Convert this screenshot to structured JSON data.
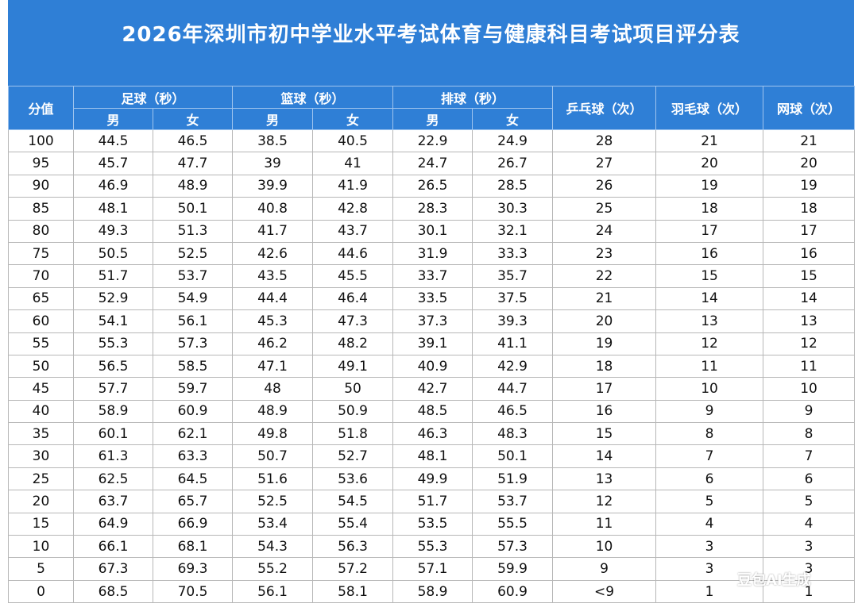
{
  "title": "2026年深圳市初中学业水平考试体育与健康科目考试项目评分表",
  "header": {
    "score": "分值",
    "football": "足球（秒）",
    "basketball": "篮球（秒）",
    "volleyball": "排球（秒）",
    "tabletennis": "乒乓球（次）",
    "badminton": "羽毛球（次）",
    "tennis": "网球（次）",
    "male": "男",
    "female": "女"
  },
  "rows": [
    [
      "100",
      "44.5",
      "46.5",
      "38.5",
      "40.5",
      "22.9",
      "24.9",
      "28",
      "21",
      "21"
    ],
    [
      "95",
      "45.7",
      "47.7",
      "39",
      "41",
      "24.7",
      "26.7",
      "27",
      "20",
      "20"
    ],
    [
      "90",
      "46.9",
      "48.9",
      "39.9",
      "41.9",
      "26.5",
      "28.5",
      "26",
      "19",
      "19"
    ],
    [
      "85",
      "48.1",
      "50.1",
      "40.8",
      "42.8",
      "28.3",
      "30.3",
      "25",
      "18",
      "18"
    ],
    [
      "80",
      "49.3",
      "51.3",
      "41.7",
      "43.7",
      "30.1",
      "32.1",
      "24",
      "17",
      "17"
    ],
    [
      "75",
      "50.5",
      "52.5",
      "42.6",
      "44.6",
      "31.9",
      "33.3",
      "23",
      "16",
      "16"
    ],
    [
      "70",
      "51.7",
      "53.7",
      "43.5",
      "45.5",
      "33.7",
      "35.7",
      "22",
      "15",
      "15"
    ],
    [
      "65",
      "52.9",
      "54.9",
      "44.4",
      "46.4",
      "33.5",
      "37.5",
      "21",
      "14",
      "14"
    ],
    [
      "60",
      "54.1",
      "56.1",
      "45.3",
      "47.3",
      "37.3",
      "39.3",
      "20",
      "13",
      "13"
    ],
    [
      "55",
      "55.3",
      "57.3",
      "46.2",
      "48.2",
      "39.1",
      "41.1",
      "19",
      "12",
      "12"
    ],
    [
      "50",
      "56.5",
      "58.5",
      "47.1",
      "49.1",
      "40.9",
      "42.9",
      "18",
      "11",
      "11"
    ],
    [
      "45",
      "57.7",
      "59.7",
      "48",
      "50",
      "42.7",
      "44.7",
      "17",
      "10",
      "10"
    ],
    [
      "40",
      "58.9",
      "60.9",
      "48.9",
      "50.9",
      "48.5",
      "46.5",
      "16",
      "9",
      "9"
    ],
    [
      "35",
      "60.1",
      "62.1",
      "49.8",
      "51.8",
      "46.3",
      "48.3",
      "15",
      "8",
      "8"
    ],
    [
      "30",
      "61.3",
      "63.3",
      "50.7",
      "52.7",
      "48.1",
      "50.1",
      "14",
      "7",
      "7"
    ],
    [
      "25",
      "62.5",
      "64.5",
      "51.6",
      "53.6",
      "49.9",
      "51.9",
      "13",
      "6",
      "6"
    ],
    [
      "20",
      "63.7",
      "65.7",
      "52.5",
      "54.5",
      "51.7",
      "53.7",
      "12",
      "5",
      "5"
    ],
    [
      "15",
      "64.9",
      "66.9",
      "53.4",
      "55.4",
      "53.5",
      "55.5",
      "11",
      "4",
      "4"
    ],
    [
      "10",
      "66.1",
      "68.1",
      "54.3",
      "56.3",
      "55.3",
      "57.3",
      "10",
      "3",
      "3"
    ],
    [
      "5",
      "67.3",
      "69.3",
      "55.2",
      "57.2",
      "57.1",
      "59.9",
      "9",
      "3",
      "3"
    ],
    [
      "0",
      "68.5",
      "70.5",
      "56.1",
      "58.1",
      "58.9",
      "60.9",
      "<9",
      "1",
      "1"
    ]
  ],
  "watermark": "豆包AI生成",
  "colors": {
    "header_bg": "#2f7fd6",
    "header_text": "#ffffff",
    "grid": "#b7b7b7"
  }
}
